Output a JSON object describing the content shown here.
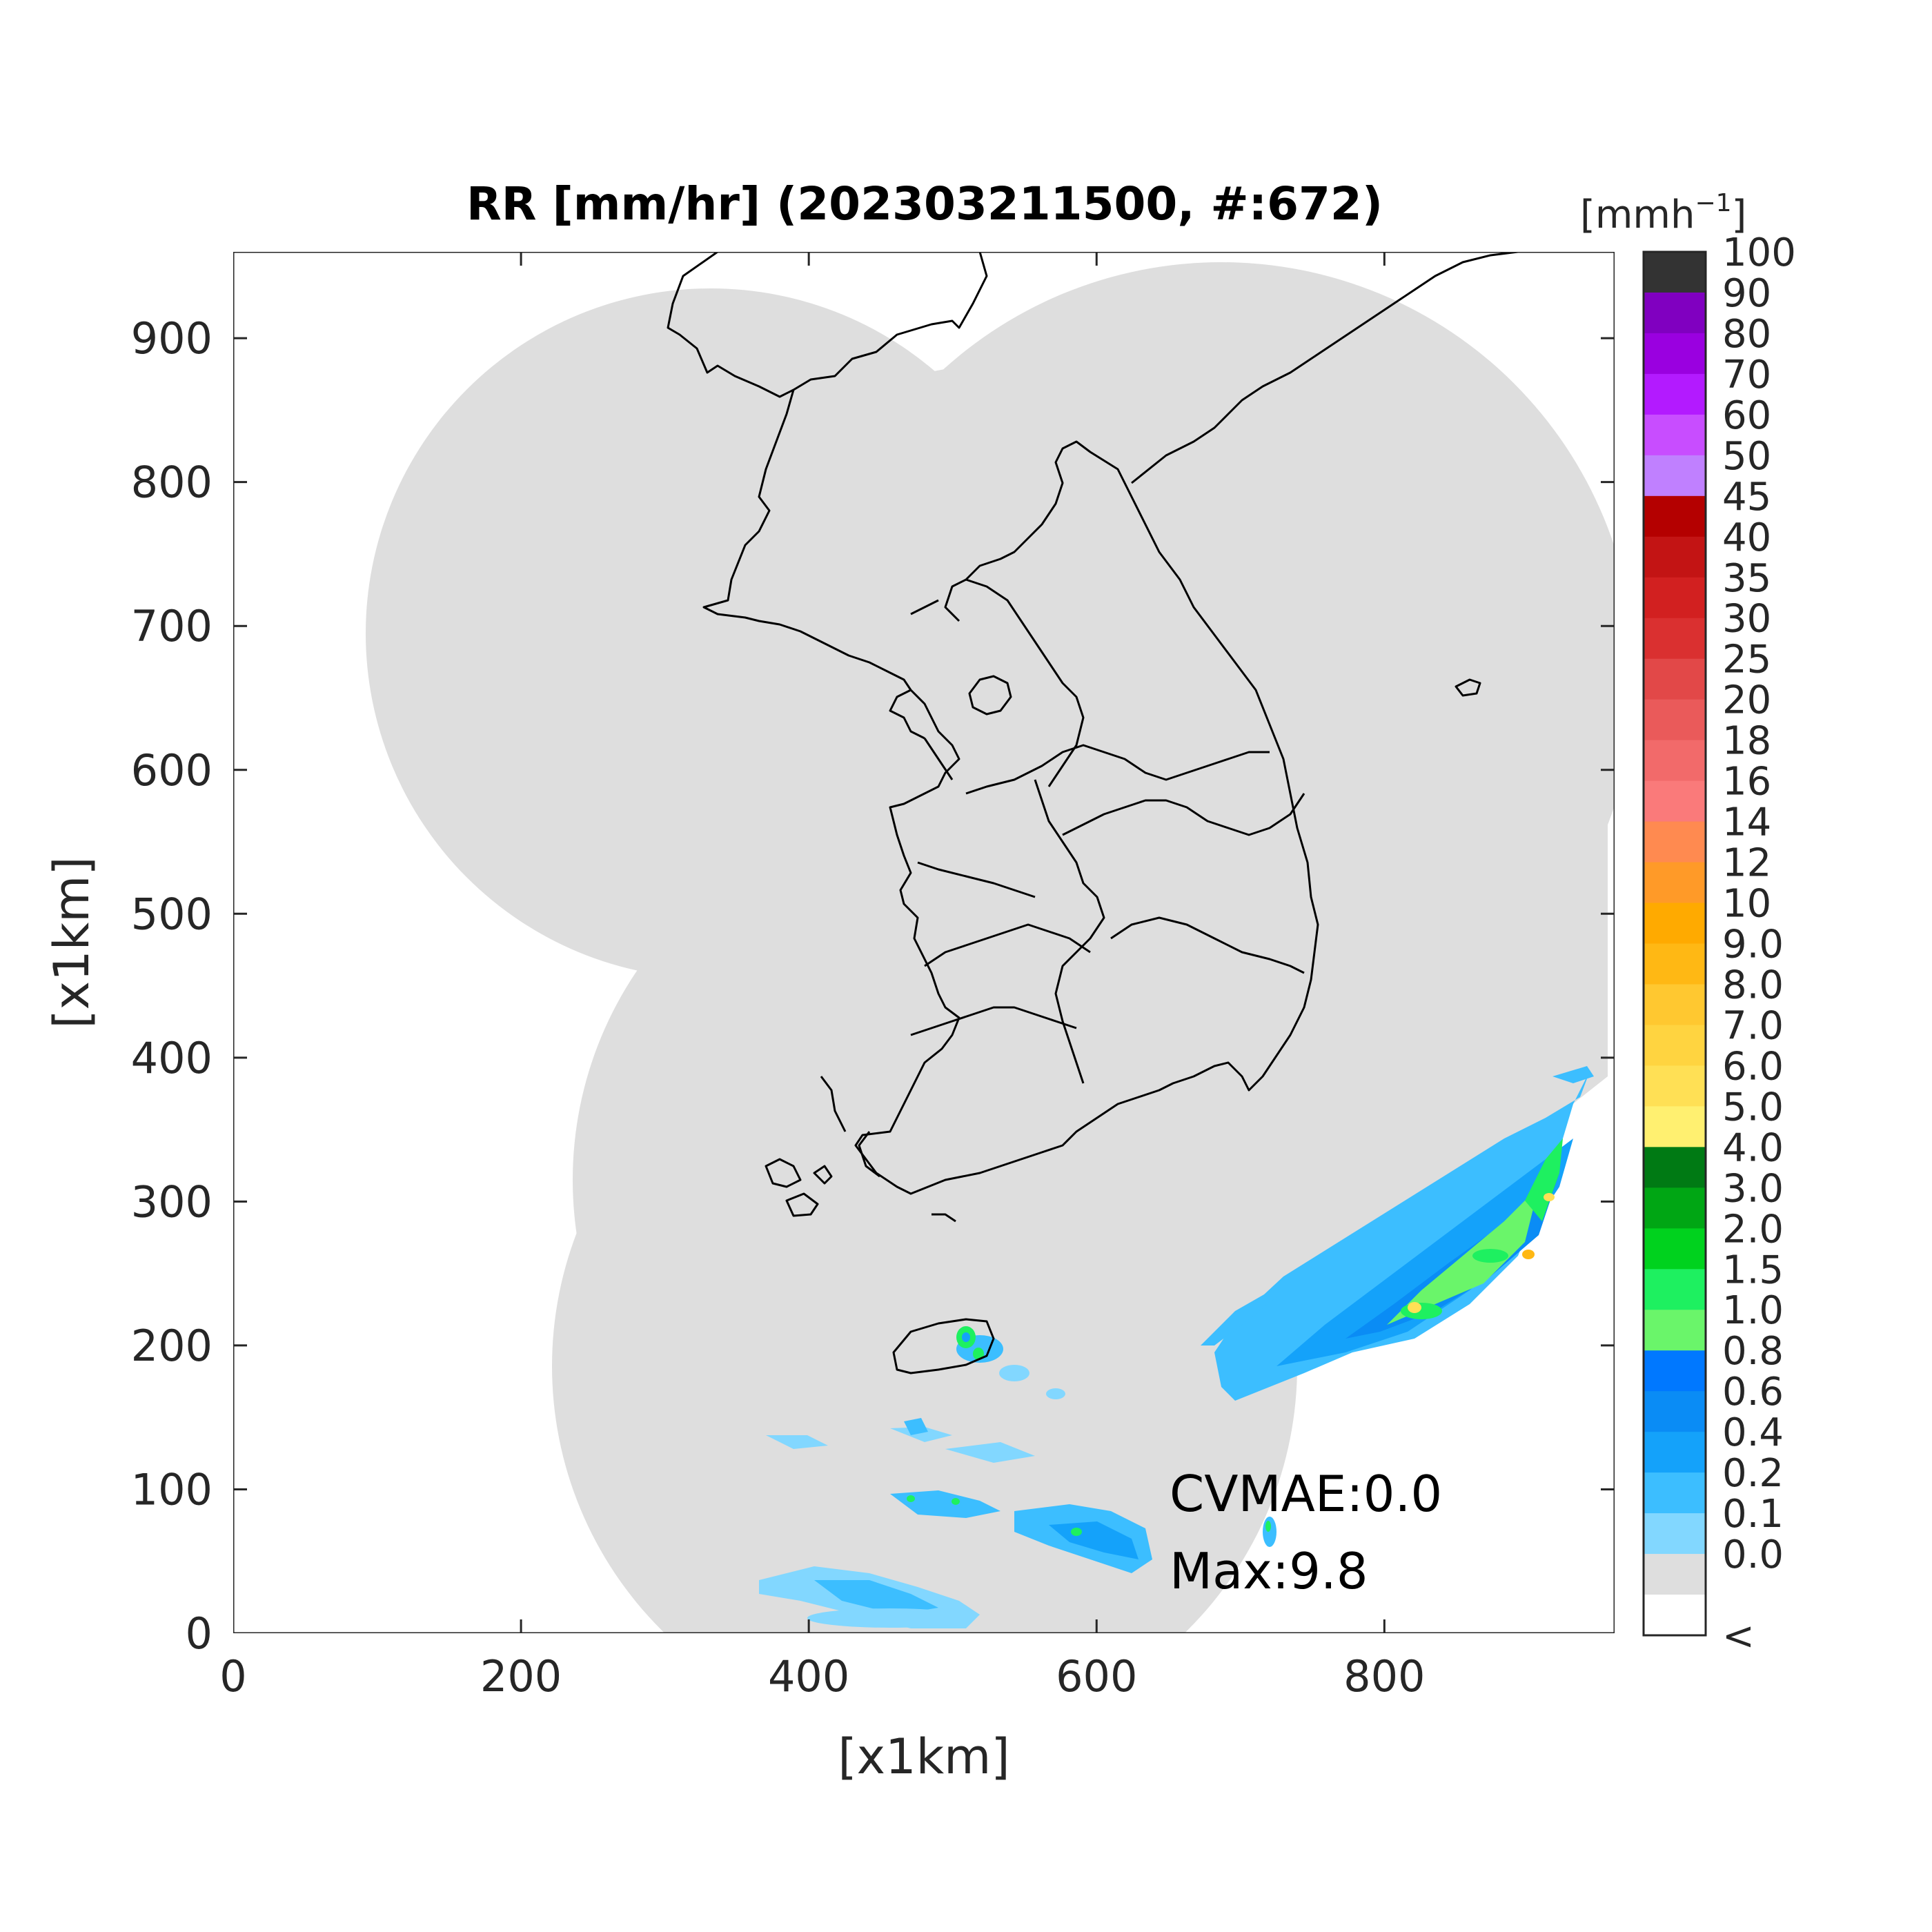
{
  "title": "RR [mm/hr] (202303211500, #:672)",
  "annotations": {
    "cvmae": "CVMAE:0.0",
    "max": "Max:9.8"
  },
  "colorbar": {
    "unit": "[mmh",
    "unit_sup": "−1",
    "unit_close": "]",
    "labels": [
      "100",
      "90",
      "80",
      "70",
      "60",
      "50",
      "45",
      "40",
      "35",
      "30",
      "25",
      "20",
      "18",
      "16",
      "14",
      "12",
      "10",
      "9.0",
      "8.0",
      "7.0",
      "6.0",
      "5.0",
      "4.0",
      "3.0",
      "2.0",
      "1.5",
      "1.0",
      "0.8",
      "0.6",
      "0.4",
      "0.2",
      "0.1",
      "0.0",
      "<"
    ],
    "colors": [
      "#333333",
      "#8000c0",
      "#9a00e0",
      "#b31aff",
      "#c84dff",
      "#c080ff",
      "#b40000",
      "#c31414",
      "#d22020",
      "#da3030",
      "#e24848",
      "#ea5a5a",
      "#f26a6a",
      "#fa7a7a",
      "#ff8a50",
      "#ff9a28",
      "#ffaa00",
      "#ffb814",
      "#ffc830",
      "#ffd440",
      "#ffe055",
      "#fff070",
      "#007a14",
      "#00a614",
      "#00d21e",
      "#1ef060",
      "#6af56a",
      "#0078ff",
      "#0a8cf5",
      "#14a2fa",
      "#3cbeff",
      "#82d7ff",
      "#dedede",
      "#ffffff"
    ]
  },
  "chart_data": {
    "type": "heatmap",
    "title": "RR [mm/hr] (202303211500, #:672)",
    "xlabel": "[x1km]",
    "ylabel": "[x1km]",
    "xlim": [
      0,
      960
    ],
    "ylim": [
      0,
      960
    ],
    "xticks": [
      "0",
      "200",
      "400",
      "600",
      "800"
    ],
    "yticks": [
      "0",
      "100",
      "200",
      "300",
      "400",
      "500",
      "600",
      "700",
      "800",
      "900"
    ],
    "colorbar_unit": "[mmh^-1]",
    "max_value": 9.8,
    "cvmae": 0.0
  }
}
